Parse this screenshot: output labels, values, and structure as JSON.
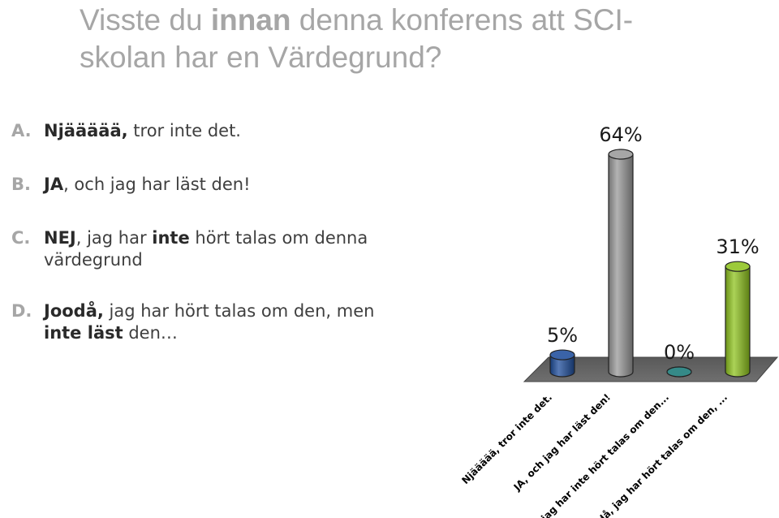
{
  "slide": {
    "title_parts": [
      {
        "text": "Visste du ",
        "bold": false
      },
      {
        "text": "innan",
        "bold": true
      },
      {
        "text": " denna konferens att SCI-skolan har en Värdegrund?",
        "bold": false
      }
    ]
  },
  "options": [
    {
      "letter": "A.",
      "top": 0,
      "parts": [
        {
          "text": "Njäääää,",
          "bold": true
        },
        {
          "text": " tror inte det.",
          "bold": false
        }
      ]
    },
    {
      "letter": "B.",
      "top": 66,
      "parts": [
        {
          "text": "JA",
          "bold": true
        },
        {
          "text": ", och jag har läst den!",
          "bold": false
        }
      ]
    },
    {
      "letter": "C.",
      "top": 132,
      "parts": [
        {
          "text": "NEJ",
          "bold": true
        },
        {
          "text": ", jag har ",
          "bold": false
        },
        {
          "text": "inte",
          "bold": true
        },
        {
          "text": " hört talas om denna värdegrund",
          "bold": false
        }
      ]
    },
    {
      "letter": "D.",
      "top": 222,
      "parts": [
        {
          "text": "Joodå,",
          "bold": true
        },
        {
          "text": " jag har hört talas om den, men ",
          "bold": false
        },
        {
          "text": "inte läst",
          "bold": true
        },
        {
          "text": " den…",
          "bold": false
        }
      ]
    }
  ],
  "chart_data": {
    "type": "bar",
    "categories": [
      "Njäääää, tror inte det.",
      "JA, och jag har läst den!",
      "NEJ, jag har inte hört talas om den...",
      "Joodå, jag har hört talas om den, ..."
    ],
    "values": [
      5,
      64,
      0,
      31
    ],
    "value_labels": [
      "5%",
      "64%",
      "0%",
      "31%"
    ],
    "colors": [
      "#1f4e9c",
      "#9a9a9a",
      "#1a7a78",
      "#8fc31f"
    ],
    "style": "3d-cylinder",
    "ylim": [
      0,
      64
    ]
  }
}
